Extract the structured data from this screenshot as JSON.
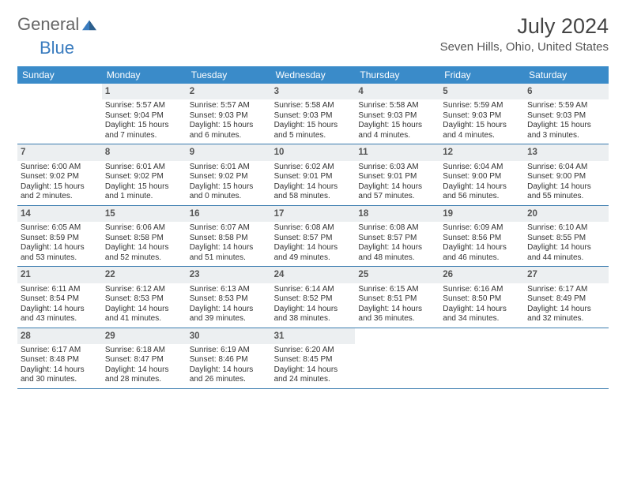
{
  "brand": {
    "general": "General",
    "blue": "Blue"
  },
  "title": "July 2024",
  "location": "Seven Hills, Ohio, United States",
  "colors": {
    "header_bg": "#3a8bc9",
    "header_text": "#ffffff",
    "date_bg": "#eceff1",
    "row_border": "#3a7caf",
    "text": "#333333",
    "brand_gray": "#666666",
    "brand_blue": "#3a7cbf"
  },
  "daynames": [
    "Sunday",
    "Monday",
    "Tuesday",
    "Wednesday",
    "Thursday",
    "Friday",
    "Saturday"
  ],
  "weeks": [
    [
      {
        "date": "",
        "sunrise": "",
        "sunset": "",
        "daylight": ""
      },
      {
        "date": "1",
        "sunrise": "Sunrise: 5:57 AM",
        "sunset": "Sunset: 9:04 PM",
        "daylight": "Daylight: 15 hours and 7 minutes."
      },
      {
        "date": "2",
        "sunrise": "Sunrise: 5:57 AM",
        "sunset": "Sunset: 9:03 PM",
        "daylight": "Daylight: 15 hours and 6 minutes."
      },
      {
        "date": "3",
        "sunrise": "Sunrise: 5:58 AM",
        "sunset": "Sunset: 9:03 PM",
        "daylight": "Daylight: 15 hours and 5 minutes."
      },
      {
        "date": "4",
        "sunrise": "Sunrise: 5:58 AM",
        "sunset": "Sunset: 9:03 PM",
        "daylight": "Daylight: 15 hours and 4 minutes."
      },
      {
        "date": "5",
        "sunrise": "Sunrise: 5:59 AM",
        "sunset": "Sunset: 9:03 PM",
        "daylight": "Daylight: 15 hours and 4 minutes."
      },
      {
        "date": "6",
        "sunrise": "Sunrise: 5:59 AM",
        "sunset": "Sunset: 9:03 PM",
        "daylight": "Daylight: 15 hours and 3 minutes."
      }
    ],
    [
      {
        "date": "7",
        "sunrise": "Sunrise: 6:00 AM",
        "sunset": "Sunset: 9:02 PM",
        "daylight": "Daylight: 15 hours and 2 minutes."
      },
      {
        "date": "8",
        "sunrise": "Sunrise: 6:01 AM",
        "sunset": "Sunset: 9:02 PM",
        "daylight": "Daylight: 15 hours and 1 minute."
      },
      {
        "date": "9",
        "sunrise": "Sunrise: 6:01 AM",
        "sunset": "Sunset: 9:02 PM",
        "daylight": "Daylight: 15 hours and 0 minutes."
      },
      {
        "date": "10",
        "sunrise": "Sunrise: 6:02 AM",
        "sunset": "Sunset: 9:01 PM",
        "daylight": "Daylight: 14 hours and 58 minutes."
      },
      {
        "date": "11",
        "sunrise": "Sunrise: 6:03 AM",
        "sunset": "Sunset: 9:01 PM",
        "daylight": "Daylight: 14 hours and 57 minutes."
      },
      {
        "date": "12",
        "sunrise": "Sunrise: 6:04 AM",
        "sunset": "Sunset: 9:00 PM",
        "daylight": "Daylight: 14 hours and 56 minutes."
      },
      {
        "date": "13",
        "sunrise": "Sunrise: 6:04 AM",
        "sunset": "Sunset: 9:00 PM",
        "daylight": "Daylight: 14 hours and 55 minutes."
      }
    ],
    [
      {
        "date": "14",
        "sunrise": "Sunrise: 6:05 AM",
        "sunset": "Sunset: 8:59 PM",
        "daylight": "Daylight: 14 hours and 53 minutes."
      },
      {
        "date": "15",
        "sunrise": "Sunrise: 6:06 AM",
        "sunset": "Sunset: 8:58 PM",
        "daylight": "Daylight: 14 hours and 52 minutes."
      },
      {
        "date": "16",
        "sunrise": "Sunrise: 6:07 AM",
        "sunset": "Sunset: 8:58 PM",
        "daylight": "Daylight: 14 hours and 51 minutes."
      },
      {
        "date": "17",
        "sunrise": "Sunrise: 6:08 AM",
        "sunset": "Sunset: 8:57 PM",
        "daylight": "Daylight: 14 hours and 49 minutes."
      },
      {
        "date": "18",
        "sunrise": "Sunrise: 6:08 AM",
        "sunset": "Sunset: 8:57 PM",
        "daylight": "Daylight: 14 hours and 48 minutes."
      },
      {
        "date": "19",
        "sunrise": "Sunrise: 6:09 AM",
        "sunset": "Sunset: 8:56 PM",
        "daylight": "Daylight: 14 hours and 46 minutes."
      },
      {
        "date": "20",
        "sunrise": "Sunrise: 6:10 AM",
        "sunset": "Sunset: 8:55 PM",
        "daylight": "Daylight: 14 hours and 44 minutes."
      }
    ],
    [
      {
        "date": "21",
        "sunrise": "Sunrise: 6:11 AM",
        "sunset": "Sunset: 8:54 PM",
        "daylight": "Daylight: 14 hours and 43 minutes."
      },
      {
        "date": "22",
        "sunrise": "Sunrise: 6:12 AM",
        "sunset": "Sunset: 8:53 PM",
        "daylight": "Daylight: 14 hours and 41 minutes."
      },
      {
        "date": "23",
        "sunrise": "Sunrise: 6:13 AM",
        "sunset": "Sunset: 8:53 PM",
        "daylight": "Daylight: 14 hours and 39 minutes."
      },
      {
        "date": "24",
        "sunrise": "Sunrise: 6:14 AM",
        "sunset": "Sunset: 8:52 PM",
        "daylight": "Daylight: 14 hours and 38 minutes."
      },
      {
        "date": "25",
        "sunrise": "Sunrise: 6:15 AM",
        "sunset": "Sunset: 8:51 PM",
        "daylight": "Daylight: 14 hours and 36 minutes."
      },
      {
        "date": "26",
        "sunrise": "Sunrise: 6:16 AM",
        "sunset": "Sunset: 8:50 PM",
        "daylight": "Daylight: 14 hours and 34 minutes."
      },
      {
        "date": "27",
        "sunrise": "Sunrise: 6:17 AM",
        "sunset": "Sunset: 8:49 PM",
        "daylight": "Daylight: 14 hours and 32 minutes."
      }
    ],
    [
      {
        "date": "28",
        "sunrise": "Sunrise: 6:17 AM",
        "sunset": "Sunset: 8:48 PM",
        "daylight": "Daylight: 14 hours and 30 minutes."
      },
      {
        "date": "29",
        "sunrise": "Sunrise: 6:18 AM",
        "sunset": "Sunset: 8:47 PM",
        "daylight": "Daylight: 14 hours and 28 minutes."
      },
      {
        "date": "30",
        "sunrise": "Sunrise: 6:19 AM",
        "sunset": "Sunset: 8:46 PM",
        "daylight": "Daylight: 14 hours and 26 minutes."
      },
      {
        "date": "31",
        "sunrise": "Sunrise: 6:20 AM",
        "sunset": "Sunset: 8:45 PM",
        "daylight": "Daylight: 14 hours and 24 minutes."
      },
      {
        "date": "",
        "sunrise": "",
        "sunset": "",
        "daylight": ""
      },
      {
        "date": "",
        "sunrise": "",
        "sunset": "",
        "daylight": ""
      },
      {
        "date": "",
        "sunrise": "",
        "sunset": "",
        "daylight": ""
      }
    ]
  ]
}
